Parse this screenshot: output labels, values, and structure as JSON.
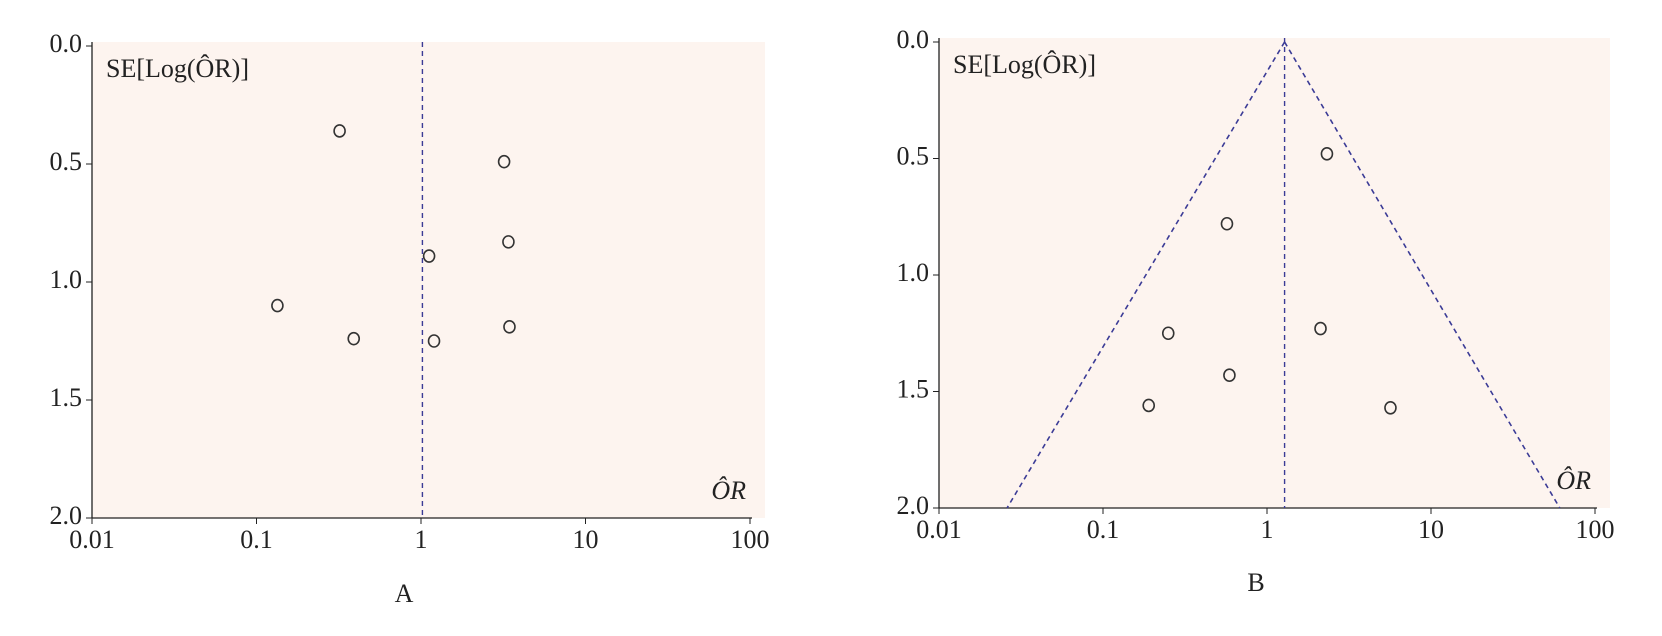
{
  "chart_data": [
    {
      "type": "scatter",
      "panel_label": "A",
      "y_axis_label": "SE[Log(ÔR)]",
      "x_axis_label": "ÔR",
      "xscale": "log",
      "xlim": [
        0.01,
        100
      ],
      "xticks": [
        0.01,
        0.1,
        1,
        10,
        100
      ],
      "ylim": [
        2,
        0
      ],
      "yticks": [
        {
          "value": 0,
          "label": "0.0"
        },
        {
          "value": 0.5,
          "label": "0.5"
        },
        {
          "value": 1,
          "label": "1.0"
        },
        {
          "value": 1.5,
          "label": "1.5"
        },
        {
          "value": 2,
          "label": "2.0"
        }
      ],
      "background": "#fdf4ef",
      "marker_color": "#333333",
      "line_color": "#3b3b96",
      "reference_line": 1.02,
      "x": [
        0.32,
        3.2,
        1.12,
        3.4,
        0.134,
        0.39,
        1.2,
        3.45
      ],
      "values": [
        0.36,
        0.49,
        0.89,
        0.83,
        1.1,
        1.24,
        1.25,
        1.19
      ]
    },
    {
      "type": "scatter",
      "panel_label": "B",
      "y_axis_label": "SE[Log(ÔR)]",
      "x_axis_label": "ÔR",
      "xscale": "log",
      "xlim": [
        0.01,
        100
      ],
      "xticks": [
        0.01,
        0.1,
        1,
        10,
        100
      ],
      "ylim": [
        2,
        0
      ],
      "yticks": [
        {
          "value": 0,
          "label": "0.0"
        },
        {
          "value": 0.5,
          "label": "0.5"
        },
        {
          "value": 1,
          "label": "1.0"
        },
        {
          "value": 1.5,
          "label": "1.5"
        },
        {
          "value": 2,
          "label": "2.0"
        }
      ],
      "background": "#fdf4ef",
      "marker_color": "#333333",
      "line_color": "#3b3b96",
      "reference_line": 1.28,
      "funnel_lines": [
        {
          "x": [
            1.28,
            0.026
          ],
          "y": [
            0,
            2
          ]
        },
        {
          "x": [
            1.28,
            61
          ],
          "y": [
            0,
            2
          ]
        }
      ],
      "x": [
        2.32,
        0.57,
        0.25,
        2.12,
        0.59,
        0.19,
        5.66
      ],
      "values": [
        0.48,
        0.78,
        1.25,
        1.23,
        1.43,
        1.56,
        1.57
      ]
    }
  ]
}
